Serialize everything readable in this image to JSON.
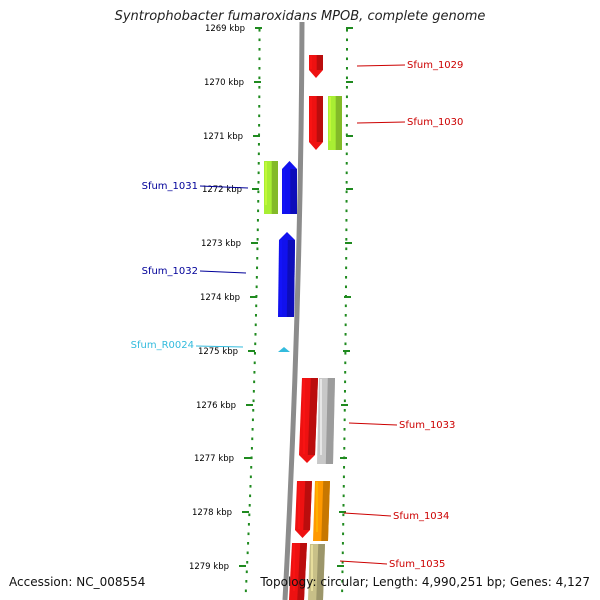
{
  "title": "Syntrophobacter fumaroxidans MPOB, complete genome",
  "footer": {
    "accession": "Accession: NC_008554",
    "topology": "Topology: circular; Length: 4,990,251 bp; Genes: 4,127"
  },
  "scale": {
    "labels": [
      "1269 kbp",
      "1270 kbp",
      "1271 kbp",
      "1272 kbp",
      "1273 kbp",
      "1274 kbp",
      "1275 kbp",
      "1276 kbp",
      "1277 kbp",
      "1278 kbp",
      "1279 kbp"
    ]
  },
  "genes": [
    {
      "name": "Sfum_1029",
      "strand": "outer-right",
      "color": "#cc0000"
    },
    {
      "name": "Sfum_1030",
      "strand": "outer-right",
      "color": "#cc0000"
    },
    {
      "name": "Sfum_1031",
      "strand": "left",
      "color": "#000099"
    },
    {
      "name": "Sfum_1032",
      "strand": "left",
      "color": "#000099"
    },
    {
      "name": "Sfum_R0024",
      "strand": "left",
      "color": "#33bbdd"
    },
    {
      "name": "Sfum_1033",
      "strand": "outer-right",
      "color": "#cc0000"
    },
    {
      "name": "Sfum_1034",
      "strand": "outer-right",
      "color": "#cc0000"
    },
    {
      "name": "Sfum_1035",
      "strand": "outer-right",
      "color": "#cc0000"
    }
  ],
  "colors": {
    "backbone": "#8c8c8c",
    "scale_dots": "#1f8a1f",
    "red_gene": "#ee1111",
    "blue_gene": "#1111ee",
    "lime_gene": "#a8ee33",
    "grey_gene": "#c8c8c8",
    "orange_gene": "#ff9900",
    "khaki_gene": "#c8c088"
  }
}
